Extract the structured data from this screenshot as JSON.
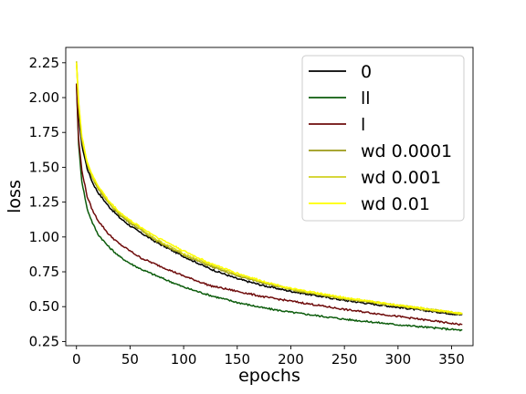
{
  "chart_data": {
    "type": "line",
    "xlabel": "epochs",
    "ylabel": "loss",
    "xlim": [
      -10,
      370
    ],
    "ylim": [
      0.22,
      2.36
    ],
    "x_ticks": [
      0,
      50,
      100,
      150,
      200,
      250,
      300,
      350
    ],
    "y_ticks": [
      0.25,
      0.5,
      0.75,
      1.0,
      1.25,
      1.5,
      1.75,
      2.0,
      2.25
    ],
    "x_tick_labels": [
      "0",
      "50",
      "100",
      "150",
      "200",
      "250",
      "300",
      "350"
    ],
    "y_tick_labels": [
      "0.25",
      "0.50",
      "0.75",
      "1.00",
      "1.25",
      "1.50",
      "1.75",
      "2.00",
      "2.25"
    ],
    "grid": false,
    "legend_position": "top-right",
    "series": [
      {
        "name": "0",
        "color": "#000000",
        "x": [
          0,
          2,
          5,
          10,
          15,
          20,
          30,
          40,
          50,
          60,
          75,
          100,
          125,
          150,
          175,
          200,
          250,
          300,
          360
        ],
        "y": [
          2.1,
          1.88,
          1.66,
          1.49,
          1.39,
          1.32,
          1.22,
          1.14,
          1.08,
          1.03,
          0.96,
          0.86,
          0.77,
          0.7,
          0.65,
          0.61,
          0.545,
          0.495,
          0.44
        ]
      },
      {
        "name": "ll",
        "color": "#0c5c0c",
        "x": [
          0,
          2,
          5,
          10,
          15,
          20,
          30,
          40,
          50,
          60,
          75,
          100,
          125,
          150,
          175,
          200,
          250,
          300,
          360
        ],
        "y": [
          2.1,
          1.66,
          1.4,
          1.2,
          1.1,
          1.02,
          0.93,
          0.86,
          0.81,
          0.77,
          0.72,
          0.64,
          0.58,
          0.53,
          0.49,
          0.46,
          0.41,
          0.37,
          0.33
        ]
      },
      {
        "name": "l",
        "color": "#6e0b0b",
        "x": [
          0,
          2,
          5,
          10,
          15,
          20,
          30,
          40,
          50,
          60,
          75,
          100,
          125,
          150,
          175,
          200,
          250,
          300,
          360
        ],
        "y": [
          2.1,
          1.7,
          1.48,
          1.29,
          1.19,
          1.12,
          1.02,
          0.95,
          0.9,
          0.85,
          0.8,
          0.72,
          0.65,
          0.61,
          0.57,
          0.54,
          0.48,
          0.43,
          0.37
        ]
      },
      {
        "name": "wd 0.0001",
        "color": "#9c9a16",
        "x": [
          0,
          2,
          5,
          10,
          15,
          20,
          30,
          40,
          50,
          60,
          75,
          100,
          125,
          150,
          175,
          200,
          250,
          300,
          360
        ],
        "y": [
          2.26,
          1.95,
          1.7,
          1.52,
          1.42,
          1.35,
          1.24,
          1.16,
          1.1,
          1.05,
          0.97,
          0.87,
          0.79,
          0.72,
          0.67,
          0.62,
          0.555,
          0.505,
          0.445
        ]
      },
      {
        "name": "wd 0.001",
        "color": "#d0d020",
        "x": [
          0,
          2,
          5,
          10,
          15,
          20,
          30,
          40,
          50,
          60,
          75,
          100,
          125,
          150,
          175,
          200,
          250,
          300,
          360
        ],
        "y": [
          2.26,
          1.97,
          1.72,
          1.53,
          1.43,
          1.36,
          1.25,
          1.17,
          1.11,
          1.06,
          0.98,
          0.88,
          0.8,
          0.73,
          0.675,
          0.625,
          0.56,
          0.51,
          0.45
        ]
      },
      {
        "name": "wd 0.01",
        "color": "#ffff00",
        "x": [
          0,
          2,
          5,
          10,
          15,
          20,
          30,
          40,
          50,
          60,
          75,
          100,
          125,
          150,
          175,
          200,
          250,
          300,
          360
        ],
        "y": [
          2.25,
          1.96,
          1.72,
          1.54,
          1.44,
          1.37,
          1.26,
          1.18,
          1.12,
          1.07,
          1.0,
          0.9,
          0.81,
          0.74,
          0.68,
          0.63,
          0.565,
          0.51,
          0.45
        ]
      }
    ]
  }
}
